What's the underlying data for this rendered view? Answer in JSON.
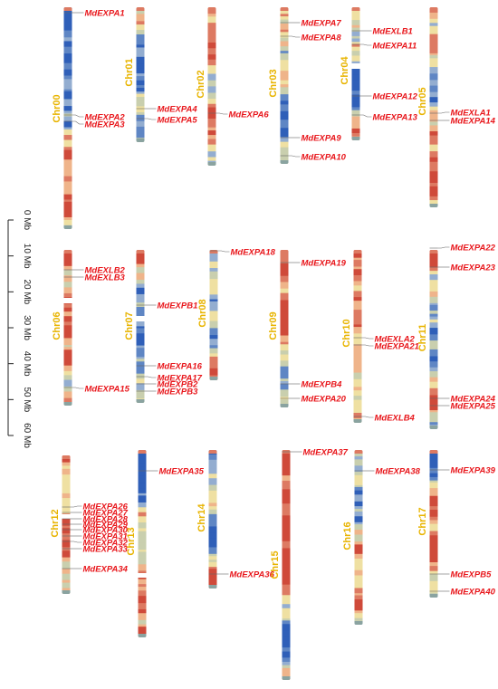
{
  "scale": {
    "unit": "Mb",
    "ticks": [
      "0 Mb",
      "10 Mb",
      "20 Mb",
      "30 Mb",
      "40 Mb",
      "50 Mb",
      "60 Mb"
    ]
  },
  "colors": {
    "label": "#e8b400",
    "gene": "#e8161b",
    "palette": [
      "#2f5fb8",
      "#5f86c4",
      "#93add0",
      "#c9cfae",
      "#efe0a2",
      "#efb48a",
      "#dd7a62",
      "#cf4a3a"
    ]
  },
  "chromosomes": [
    {
      "name": "Chr00",
      "seed": 3,
      "genes": [
        {
          "label": "MdEXPA1"
        },
        {
          "label": "MdEXPA2"
        },
        {
          "label": "MdEXPA3"
        }
      ]
    },
    {
      "name": "Chr01",
      "seed": 7,
      "genes": [
        {
          "label": "MdEXPA4"
        },
        {
          "label": "MdEXPA5"
        }
      ]
    },
    {
      "name": "Chr02",
      "seed": 11,
      "genes": [
        {
          "label": "MdEXPA6"
        }
      ]
    },
    {
      "name": "Chr03",
      "seed": 13,
      "genes": [
        {
          "label": "MdEXPA7"
        },
        {
          "label": "MdEXPA8"
        },
        {
          "label": "MdEXPA9"
        },
        {
          "label": "MdEXPA10"
        }
      ]
    },
    {
      "name": "Chr04",
      "seed": 17,
      "genes": [
        {
          "label": "MdEXLB1"
        },
        {
          "label": "MdEXPA11"
        },
        {
          "label": "MdEXPA12"
        },
        {
          "label": "MdEXPA13"
        }
      ]
    },
    {
      "name": "Chr05",
      "seed": 19,
      "genes": [
        {
          "label": "MdEXLA1"
        },
        {
          "label": "MdEXPA14"
        }
      ]
    },
    {
      "name": "Chr06",
      "seed": 23,
      "genes": [
        {
          "label": "MdEXLB2"
        },
        {
          "label": "MdEXLB3"
        },
        {
          "label": "MdEXPA15"
        }
      ]
    },
    {
      "name": "Chr07",
      "seed": 29,
      "genes": [
        {
          "label": "MdEXPB1"
        },
        {
          "label": "MdEXPA16"
        },
        {
          "label": "MdEXPA17"
        },
        {
          "label": "MdEXPB2"
        },
        {
          "label": "MdEXPB3"
        }
      ]
    },
    {
      "name": "Chr08",
      "seed": 31,
      "genes": [
        {
          "label": "MdEXPA18"
        }
      ]
    },
    {
      "name": "Chr09",
      "seed": 37,
      "genes": [
        {
          "label": "MdEXPA19"
        },
        {
          "label": "MdEXPB4"
        },
        {
          "label": "MdEXPA20"
        }
      ]
    },
    {
      "name": "Chr10",
      "seed": 41,
      "genes": [
        {
          "label": "MdEXLA2"
        },
        {
          "label": "MdEXPA21"
        },
        {
          "label": "MdEXLB4"
        }
      ]
    },
    {
      "name": "Chr11",
      "seed": 43,
      "genes": [
        {
          "label": "MdEXPA22"
        },
        {
          "label": "MdEXPA23"
        },
        {
          "label": "MdEXPA24"
        },
        {
          "label": "MdEXPA25"
        }
      ]
    },
    {
      "name": "Chr12",
      "seed": 47,
      "genes": [
        {
          "label": "MdEXPA26"
        },
        {
          "label": "MdEXPA27"
        },
        {
          "label": "MdEXPA28"
        },
        {
          "label": "MdEXPA29"
        },
        {
          "label": "MdEXPA30"
        },
        {
          "label": "MdEXPA31"
        },
        {
          "label": "MdEXPA32"
        },
        {
          "label": "MdEXPA33"
        },
        {
          "label": "MdEXPA34"
        }
      ]
    },
    {
      "name": "Chr13",
      "seed": 53,
      "genes": [
        {
          "label": "MdEXPA35"
        }
      ]
    },
    {
      "name": "Chr14",
      "seed": 59,
      "genes": [
        {
          "label": "MdEXPA36"
        }
      ]
    },
    {
      "name": "Chr15",
      "seed": 61,
      "genes": [
        {
          "label": "MdEXPA37"
        }
      ]
    },
    {
      "name": "Chr16",
      "seed": 67,
      "genes": [
        {
          "label": "MdEXPA38"
        }
      ]
    },
    {
      "name": "Chr17",
      "seed": 71,
      "genes": [
        {
          "label": "MdEXPA39"
        },
        {
          "label": "MdEXPB5"
        },
        {
          "label": "MdEXPA40"
        }
      ]
    }
  ]
}
